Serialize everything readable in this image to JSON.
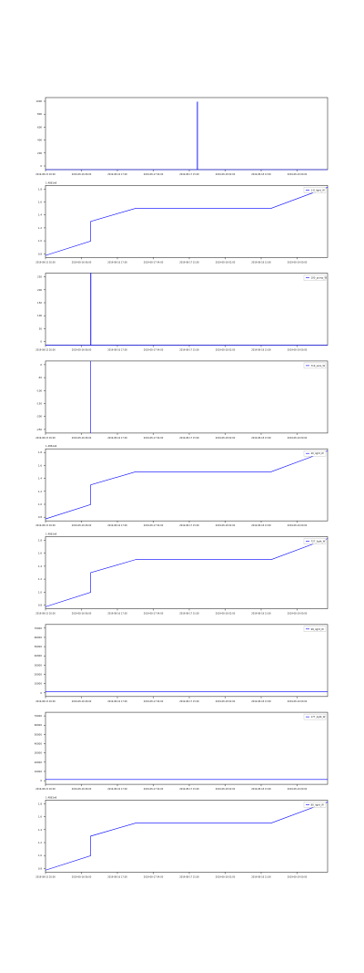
{
  "chart_data": [
    {
      "type": "line",
      "legend": null,
      "offset_text": "",
      "y_ticks": [
        "1000",
        "800",
        "600",
        "400",
        "200",
        "0"
      ],
      "ylim": [
        0,
        1000
      ],
      "x_ticks": [
        "2019-08-15 20:00",
        "2019-08-16 06:00",
        "2019-08-16 17:00",
        "2019-08-17 04:00",
        "2019-08-17 15:00",
        "2019-08-18 02:00",
        "2019-08-18 13:00",
        "2019-08-19 00:00"
      ],
      "series": [
        {
          "color": "#0000ff",
          "x": [
            0,
            0.538,
            0.538,
            0.539,
            0.539,
            1
          ],
          "y": [
            0,
            0,
            940,
            940,
            0,
            0
          ]
        }
      ]
    },
    {
      "type": "line",
      "legend": "1-8_light_W",
      "offset_text": "1.4861e9",
      "y_ticks": [
        "1.8",
        "1.6",
        "1.4",
        "1.2",
        "1.0",
        "0.8"
      ],
      "ylim": [
        0.75,
        1.85
      ],
      "x_ticks": [
        "2019-08-15 20:00",
        "2019-08-16 06:00",
        "2019-08-16 17:00",
        "2019-08-17 04:00",
        "2019-08-17 15:00",
        "2019-08-18 02:00",
        "2019-08-18 13:00",
        "2019-08-19 00:00"
      ],
      "series": [
        {
          "color": "#0000ff",
          "x": [
            0,
            0.16,
            0.16,
            0.32,
            0.8,
            1
          ],
          "y": [
            0.78,
            1.0,
            1.3,
            1.5,
            1.5,
            1.82
          ]
        }
      ]
    },
    {
      "type": "line",
      "legend": "100_pump_W",
      "offset_text": "",
      "y_ticks": [
        "250",
        "200",
        "150",
        "100",
        "50",
        "0"
      ],
      "ylim": [
        0,
        250
      ],
      "x_ticks": [
        "2019-08-15 20:00",
        "2019-08-16 06:00",
        "2019-08-16 17:00",
        "2019-08-17 04:00",
        "2019-08-17 15:00",
        "2019-08-18 02:00",
        "2019-08-18 13:00",
        "2019-08-19 00:00"
      ],
      "series": [
        {
          "color": "#0000ff",
          "x": [
            0,
            0.16,
            0.16,
            0.161,
            0.161,
            1
          ],
          "y": [
            0,
            0,
            250,
            250,
            0,
            0
          ]
        }
      ]
    },
    {
      "type": "line",
      "legend": "719_wire_W",
      "offset_text": "",
      "y_ticks": [
        "0",
        "-50",
        "-100",
        "-150",
        "-200",
        "-250"
      ],
      "ylim": [
        -270,
        0
      ],
      "x_ticks": [
        "2019-08-15 20:00",
        "2019-08-16 06:00",
        "2019-08-16 17:00",
        "2019-08-17 04:00",
        "2019-08-17 15:00",
        "2019-08-18 02:00",
        "2019-08-18 13:00",
        "2019-08-19 00:00"
      ],
      "series": [
        {
          "color": "#0000ff",
          "x": [
            0.16,
            0.16
          ],
          "y": [
            0,
            -270
          ]
        }
      ]
    },
    {
      "type": "line",
      "legend": "40_light_W",
      "offset_text": "1.4861e9",
      "y_ticks": [
        "1.8",
        "1.6",
        "1.4",
        "1.2",
        "1.0",
        "0.8"
      ],
      "ylim": [
        0.75,
        1.85
      ],
      "x_ticks": [
        "2019-08-15 20:00",
        "2019-08-16 06:00",
        "2019-08-16 17:00",
        "2019-08-17 04:00",
        "2019-08-17 15:00",
        "2019-08-18 02:00",
        "2019-08-18 13:00",
        "2019-08-19 00:00"
      ],
      "series": [
        {
          "color": "#0000ff",
          "x": [
            0,
            0.16,
            0.16,
            0.32,
            0.8,
            1
          ],
          "y": [
            0.78,
            1.0,
            1.3,
            1.5,
            1.5,
            1.82
          ]
        }
      ]
    },
    {
      "type": "line",
      "legend": "727_light_W",
      "offset_text": "1.4861e9",
      "y_ticks": [
        "1.8",
        "1.6",
        "1.4",
        "1.2",
        "1.0",
        "0.8"
      ],
      "ylim": [
        0.75,
        1.85
      ],
      "x_ticks": [
        "2019-08-15 20:00",
        "2019-08-16 06:00",
        "2019-08-16 17:00",
        "2019-08-17 04:00",
        "2019-08-17 15:00",
        "2019-08-18 02:00",
        "2019-08-18 13:00",
        "2019-08-19 00:00"
      ],
      "series": [
        {
          "color": "#0000ff",
          "x": [
            0,
            0.16,
            0.16,
            0.32,
            0.8,
            1
          ],
          "y": [
            0.78,
            1.0,
            1.3,
            1.5,
            1.5,
            1.82
          ]
        }
      ]
    },
    {
      "type": "line",
      "legend": "98_light_W",
      "offset_text": "",
      "y_ticks": [
        "70000",
        "60000",
        "50000",
        "40000",
        "30000",
        "20000",
        "10000",
        "0"
      ],
      "ylim": [
        -5000,
        70000
      ],
      "x_ticks": [
        "2019-08-15 20:00",
        "2019-08-16 06:00",
        "2019-08-16 17:00",
        "2019-08-17 04:00",
        "2019-08-17 15:00",
        "2019-08-18 02:00",
        "2019-08-18 13:00",
        "2019-08-19 00:00"
      ],
      "series": [
        {
          "color": "#0000ff",
          "x": [
            0,
            1
          ],
          "y": [
            0,
            0
          ]
        }
      ]
    },
    {
      "type": "line",
      "legend": "177_light_W",
      "offset_text": "",
      "y_ticks": [
        "70000",
        "60000",
        "50000",
        "40000",
        "30000",
        "20000",
        "10000",
        "0"
      ],
      "ylim": [
        -5000,
        70000
      ],
      "x_ticks": [
        "2019-08-15 20:00",
        "2019-08-16 06:00",
        "2019-08-16 17:00",
        "2019-08-17 04:00",
        "2019-08-17 15:00",
        "2019-08-18 02:00",
        "2019-08-18 13:00",
        "2019-08-19 00:00"
      ],
      "series": [
        {
          "color": "#0000ff",
          "x": [
            0,
            1
          ],
          "y": [
            0,
            0
          ]
        }
      ]
    },
    {
      "type": "line",
      "legend": "80_light_W",
      "offset_text": "1.4861e9",
      "y_ticks": [
        "1.8",
        "1.6",
        "1.4",
        "1.2",
        "1.0",
        "0.8"
      ],
      "ylim": [
        0.75,
        1.85
      ],
      "x_ticks": [
        "2019-08-15 20:00",
        "2019-08-16 06:00",
        "2019-08-16 17:00",
        "2019-08-17 04:00",
        "2019-08-17 15:00",
        "2019-08-18 02:00",
        "2019-08-18 13:00",
        "2019-08-19 00:00"
      ],
      "series": [
        {
          "color": "#0000ff",
          "x": [
            0,
            0.16,
            0.16,
            0.32,
            0.8,
            1
          ],
          "y": [
            0.78,
            1.0,
            1.3,
            1.5,
            1.5,
            1.82
          ]
        }
      ]
    }
  ]
}
